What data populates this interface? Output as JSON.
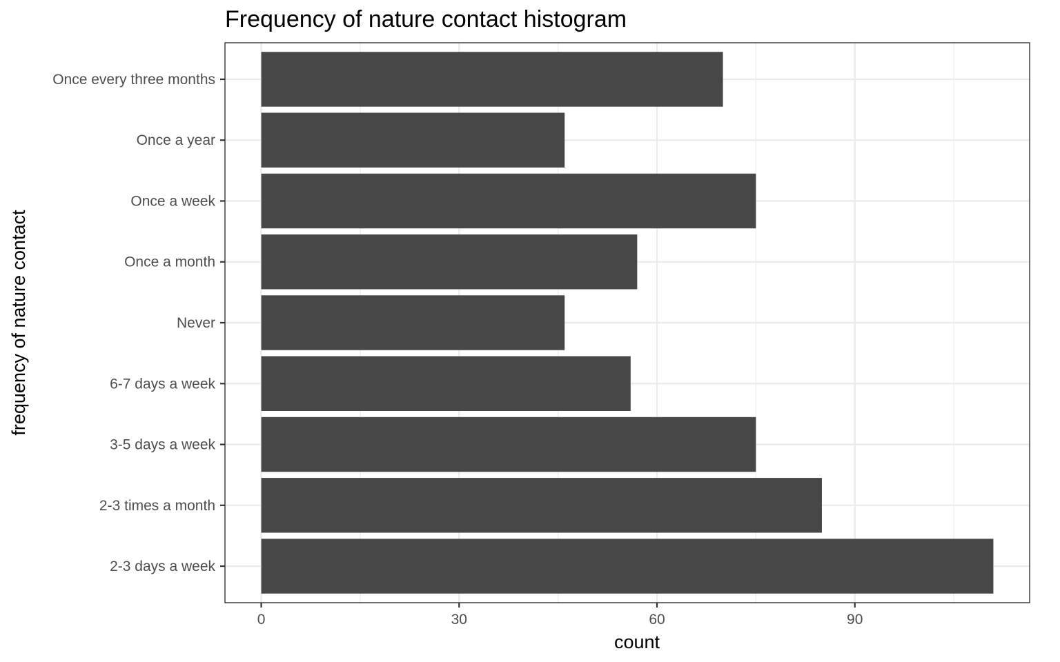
{
  "chart_data": {
    "type": "bar",
    "orientation": "horizontal",
    "title": "Frequency of nature contact histogram",
    "xlabel": "count",
    "ylabel": "frequency of nature contact",
    "categories": [
      "2-3 days a week",
      "2-3 times a month",
      "3-5 days a week",
      "6-7 days a week",
      "Never",
      "Once a month",
      "Once a week",
      "Once a year",
      "Once every three months"
    ],
    "values": [
      111,
      85,
      75,
      56,
      46,
      57,
      75,
      46,
      70
    ],
    "xlim": [
      -5.5,
      116.5
    ],
    "x_ticks": [
      0,
      30,
      60,
      90
    ],
    "x_minor_ticks": [
      15,
      45,
      75,
      105
    ],
    "grid": true,
    "bar_color": "#474747"
  }
}
